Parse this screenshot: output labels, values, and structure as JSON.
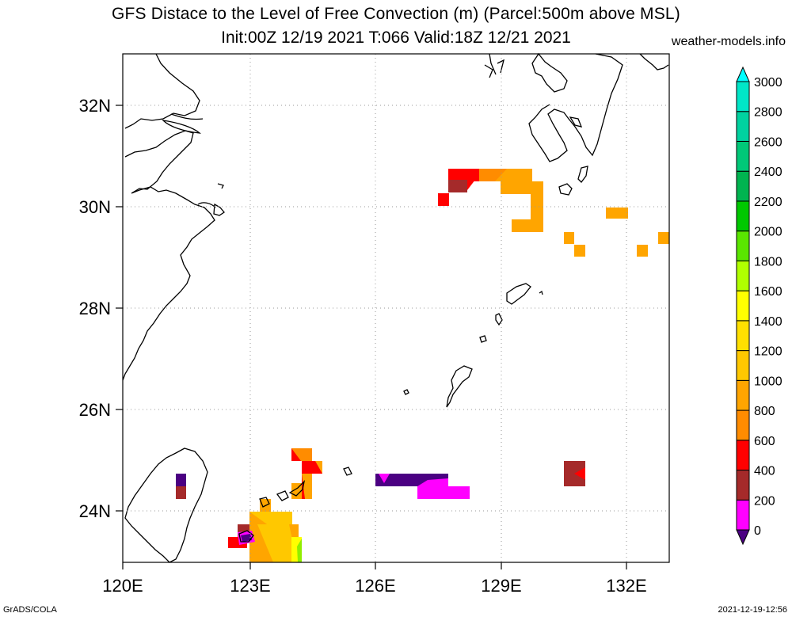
{
  "title": {
    "line1": "GFS Distace to the Level of Free Convection (m) (Parcel:500m above MSL)",
    "line2": "Init:00Z 12/19 2021 T:066 Valid:18Z 12/21 2021",
    "site": "weather-models.info"
  },
  "footer": {
    "left": "GrADS/COLA",
    "right": "2021-12-19-12:56"
  },
  "map": {
    "lon_range": [
      120,
      133
    ],
    "lat_range": [
      23,
      33
    ],
    "x_ticks": [
      "120E",
      "123E",
      "126E",
      "129E",
      "132E"
    ],
    "y_ticks": [
      "24N",
      "26N",
      "28N",
      "30N",
      "32N"
    ],
    "grid": "dotted"
  },
  "colorbar": {
    "labels": [
      "0",
      "200",
      "400",
      "600",
      "800",
      "1000",
      "1200",
      "1400",
      "1600",
      "1800",
      "2000",
      "2200",
      "2400",
      "2600",
      "2800",
      "3000"
    ],
    "colors": [
      "#4b0082",
      "#ff00ff",
      "#a52a2a",
      "#ff0000",
      "#ff8c00",
      "#ffa500",
      "#ffc800",
      "#ffe000",
      "#ffff00",
      "#b0ff00",
      "#5ae600",
      "#00c800",
      "#00b450",
      "#00c878",
      "#00d2a0",
      "#00e6c8",
      "#00ffff"
    ]
  },
  "colors": {
    "coast": "#000000",
    "grid": "#999999"
  }
}
